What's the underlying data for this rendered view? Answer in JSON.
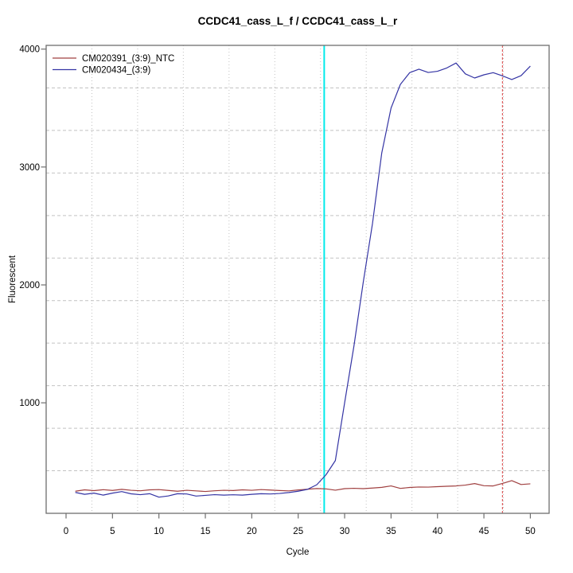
{
  "figure": {
    "title": "CCDC41_cass_L_f / CCDC41_cass_L_r"
  },
  "chart_data": {
    "type": "line",
    "title": "CCDC41_cass_L_f / CCDC41_cass_L_r",
    "xlabel": "Cycle",
    "ylabel": "Fluorescent",
    "x_ticks": [
      0,
      5,
      10,
      15,
      20,
      25,
      30,
      35,
      40,
      45,
      50
    ],
    "y_ticks": [
      1000,
      2000,
      3000,
      4000
    ],
    "xlim": [
      -2.1,
      52.1
    ],
    "ylim": [
      60,
      4030
    ],
    "grid": {
      "on": true,
      "nx": 11,
      "ny": 11,
      "color": "#c2c2c2"
    },
    "legend_position": "top-left",
    "x": [
      1,
      2,
      3,
      4,
      5,
      6,
      7,
      8,
      9,
      10,
      11,
      12,
      13,
      14,
      15,
      16,
      17,
      18,
      19,
      20,
      21,
      22,
      23,
      24,
      25,
      26,
      27,
      28,
      29,
      30,
      31,
      32,
      33,
      34,
      35,
      36,
      37,
      38,
      39,
      40,
      41,
      42,
      43,
      44,
      45,
      46,
      47,
      48,
      49,
      50
    ],
    "series": [
      {
        "name": "CM020391_(3:9)_NTC",
        "color": "#a04040",
        "values": [
          250,
          262,
          255,
          263,
          257,
          266,
          258,
          254,
          262,
          264,
          257,
          250,
          258,
          253,
          248,
          254,
          258,
          256,
          262,
          258,
          264,
          260,
          256,
          253,
          261,
          267,
          273,
          270,
          259,
          272,
          275,
          272,
          277,
          283,
          295,
          274,
          282,
          286,
          285,
          289,
          292,
          295,
          302,
          315,
          297,
          295,
          316,
          340,
          307,
          313
        ]
      },
      {
        "name": "CM020434_(3:9)",
        "color": "#3434a4",
        "values": [
          240,
          224,
          234,
          217,
          234,
          247,
          228,
          221,
          229,
          200,
          210,
          229,
          227,
          209,
          215,
          221,
          217,
          220,
          217,
          224,
          229,
          227,
          231,
          239,
          250,
          266,
          305,
          390,
          510,
          1000,
          1480,
          2020,
          2520,
          3120,
          3500,
          3700,
          3800,
          3830,
          3802,
          3812,
          3840,
          3882,
          3790,
          3755,
          3782,
          3800,
          3773,
          3742,
          3775,
          3856
        ]
      }
    ],
    "vlines": [
      {
        "x": 27.8,
        "color": "#00eaea",
        "style": "solid",
        "width": 2,
        "label": "threshold-cycle-marker"
      },
      {
        "x": 47,
        "color": "#e06060",
        "style": "dashed",
        "width": 1.2,
        "label": "cutoff-cycle-marker"
      }
    ],
    "box_color": "#6e6e6e"
  }
}
